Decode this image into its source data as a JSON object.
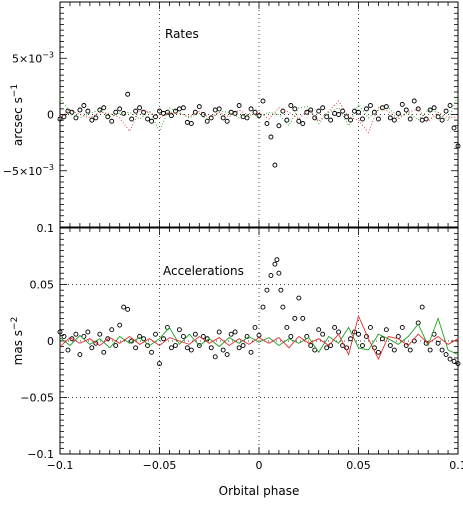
{
  "chart_data": [
    {
      "type": "scatter",
      "panel": "top",
      "annotation": "Rates",
      "ylabel_main": "arcsec s",
      "ylabel_exp": "−1",
      "xlim": [
        -0.1,
        0.1
      ],
      "ylim": [
        -0.01,
        0.01
      ],
      "grid": "dotted vertical lines at -0.05, 0, 0.05; dotted horizontal line at 0",
      "yticks": [
        {
          "value": 0.005,
          "mant": "5×10",
          "exp": "−3"
        },
        {
          "value": 0,
          "mant": "0",
          "exp": ""
        },
        {
          "value": -0.005,
          "mant": "−5×10",
          "exp": "−3"
        }
      ],
      "series": [
        {
          "style": "circles",
          "color": "#000000",
          "x": [
            -0.1,
            -0.098,
            -0.096,
            -0.094,
            -0.092,
            -0.09,
            -0.088,
            -0.086,
            -0.084,
            -0.082,
            -0.08,
            -0.078,
            -0.076,
            -0.074,
            -0.072,
            -0.07,
            -0.068,
            -0.066,
            -0.064,
            -0.062,
            -0.06,
            -0.058,
            -0.056,
            -0.054,
            -0.052,
            -0.05,
            -0.048,
            -0.046,
            -0.044,
            -0.042,
            -0.04,
            -0.038,
            -0.036,
            -0.034,
            -0.032,
            -0.03,
            -0.028,
            -0.026,
            -0.024,
            -0.022,
            -0.02,
            -0.018,
            -0.016,
            -0.014,
            -0.012,
            -0.01,
            -0.008,
            -0.006,
            -0.004,
            -0.002,
            0.0,
            0.002,
            0.004,
            0.006,
            0.008,
            0.01,
            0.012,
            0.014,
            0.016,
            0.018,
            0.02,
            0.022,
            0.024,
            0.026,
            0.028,
            0.03,
            0.032,
            0.034,
            0.036,
            0.038,
            0.04,
            0.042,
            0.044,
            0.046,
            0.048,
            0.05,
            0.052,
            0.054,
            0.056,
            0.058,
            0.06,
            0.062,
            0.064,
            0.066,
            0.068,
            0.07,
            0.072,
            0.074,
            0.076,
            0.078,
            0.08,
            0.082,
            0.084,
            0.086,
            0.088,
            0.09,
            0.092,
            0.094,
            0.096,
            0.098,
            0.1
          ],
          "y": [
            -0.0004,
            -0.0002,
            0.0003,
            0.0002,
            -0.0003,
            0.0004,
            0.0008,
            0.0003,
            -0.0005,
            -0.0003,
            0.0004,
            0.0006,
            -0.0002,
            -0.0006,
            0.0002,
            0.0005,
            0.0001,
            0.0018,
            -0.0004,
            0.0003,
            0.0006,
            0.0002,
            -0.0004,
            -0.0006,
            -0.0002,
            0.0003,
            0.0001,
            0.0002,
            -0.0001,
            0.0003,
            0.0005,
            0.0006,
            -0.0007,
            -0.0008,
            0.0002,
            0.0007,
            0.0,
            -0.0006,
            -0.0003,
            0.0004,
            0.0005,
            -0.0003,
            -0.0006,
            0.0002,
            0.0001,
            0.0008,
            -0.0002,
            -0.0003,
            0.0005,
            0.0002,
            -0.0001,
            0.0012,
            -0.0008,
            -0.002,
            -0.0045,
            -0.001,
            0.0003,
            -0.0005,
            0.0008,
            0.0005,
            -0.0006,
            -0.0008,
            0.0002,
            0.0004,
            -0.0003,
            0.0003,
            0.0006,
            -0.0002,
            -0.0005,
            0.0001,
            0.0,
            0.0003,
            -0.0002,
            -0.0005,
            0.0003,
            0.0002,
            -0.0004,
            0.0005,
            0.0008,
            0.0002,
            -0.0004,
            0.0006,
            0.0007,
            -0.0003,
            -0.0005,
            0.0001,
            0.0009,
            0.0004,
            -0.0004,
            0.0012,
            0.0005,
            -0.0005,
            -0.0004,
            0.0004,
            0.0006,
            -0.0002,
            -0.0005,
            0.0003,
            0.0008,
            -0.0012,
            -0.0028
          ]
        },
        {
          "style": "dotted line",
          "color": "#22a022",
          "x": [
            -0.1,
            -0.095,
            -0.09,
            -0.085,
            -0.08,
            -0.075,
            -0.07,
            -0.065,
            -0.06,
            -0.055,
            -0.05,
            -0.045,
            -0.04,
            -0.035,
            -0.03,
            -0.025,
            -0.02,
            -0.015,
            -0.01,
            -0.005,
            0.0,
            0.005,
            0.01,
            0.015,
            0.02,
            0.025,
            0.03,
            0.035,
            0.04,
            0.045,
            0.05,
            0.055,
            0.06,
            0.065,
            0.07,
            0.075,
            0.08,
            0.085,
            0.09,
            0.095,
            0.1
          ],
          "y": [
            0.0015,
            0.0002,
            -0.0003,
            0.0001,
            0.0004,
            -0.0002,
            0.0001,
            0.0002,
            -0.0004,
            0.0003,
            -0.0015,
            0.0006,
            0.0002,
            -0.0003,
            0.0001,
            -0.0006,
            0.0003,
            0.0002,
            -0.0003,
            0.0001,
            -0.0002,
            0.0002,
            0.0,
            -0.001,
            0.0006,
            0.0007,
            -0.0008,
            0.0002,
            0.0006,
            -0.001,
            0.0009,
            -0.0003,
            0.0004,
            0.0006,
            -0.0002,
            0.0002,
            -0.0005,
            0.0004,
            0.0002,
            -0.0006,
            0.0018
          ]
        },
        {
          "style": "dotted line",
          "color": "#e03030",
          "x": [
            -0.1,
            -0.095,
            -0.09,
            -0.085,
            -0.08,
            -0.075,
            -0.07,
            -0.065,
            -0.06,
            -0.055,
            -0.05,
            -0.045,
            -0.04,
            -0.035,
            -0.03,
            -0.025,
            -0.02,
            -0.015,
            -0.01,
            -0.005,
            0.0,
            0.005,
            0.01,
            0.015,
            0.02,
            0.025,
            0.03,
            0.035,
            0.04,
            0.045,
            0.05,
            0.055,
            0.06,
            0.065,
            0.07,
            0.075,
            0.08,
            0.085,
            0.09,
            0.095,
            0.1
          ],
          "y": [
            -0.0003,
            0.0004,
            0.0,
            -0.0003,
            0.0002,
            0.0001,
            -0.0003,
            -0.0015,
            0.0004,
            0.0002,
            -0.0003,
            0.0002,
            0.0001,
            -0.0002,
            0.0003,
            -0.0003,
            0.0002,
            -0.0002,
            0.0004,
            -0.0001,
            0.0002,
            -0.0004,
            0.0006,
            0.0002,
            -0.0004,
            0.0005,
            -0.0006,
            0.0003,
            0.0012,
            -0.0002,
            -0.0005,
            -0.0016,
            0.0006,
            0.0003,
            -0.0004,
            0.0002,
            0.0005,
            -0.0006,
            0.0002,
            -0.0003,
            -0.0002
          ]
        }
      ]
    },
    {
      "type": "scatter",
      "panel": "bottom",
      "annotation": "Accelerations",
      "ylabel_main": "mas s",
      "ylabel_exp": "−2",
      "xlabel": "Orbital phase",
      "xlim": [
        -0.1,
        0.1
      ],
      "ylim": [
        -0.1,
        0.1
      ],
      "grid": "dotted vertical lines at -0.05, 0, 0.05; dotted horizontal lines at -0.05, 0, 0.05",
      "xticks": [
        {
          "value": -0.1,
          "label": "−0.1"
        },
        {
          "value": -0.05,
          "label": "−0.05"
        },
        {
          "value": 0,
          "label": "0"
        },
        {
          "value": 0.05,
          "label": "0.05"
        },
        {
          "value": 0.1,
          "label": "0.1"
        }
      ],
      "yticks": [
        {
          "value": 0.1,
          "label": "0.1"
        },
        {
          "value": 0.05,
          "label": "0.05"
        },
        {
          "value": 0,
          "label": "0"
        },
        {
          "value": -0.05,
          "label": "−0.05"
        },
        {
          "value": -0.1,
          "label": "−0.1"
        }
      ],
      "series": [
        {
          "style": "circles",
          "color": "#000000",
          "x": [
            -0.1,
            -0.098,
            -0.096,
            -0.094,
            -0.092,
            -0.09,
            -0.088,
            -0.086,
            -0.084,
            -0.082,
            -0.08,
            -0.078,
            -0.076,
            -0.074,
            -0.072,
            -0.07,
            -0.068,
            -0.066,
            -0.064,
            -0.062,
            -0.06,
            -0.058,
            -0.056,
            -0.054,
            -0.052,
            -0.05,
            -0.048,
            -0.046,
            -0.044,
            -0.042,
            -0.04,
            -0.038,
            -0.036,
            -0.034,
            -0.032,
            -0.03,
            -0.028,
            -0.026,
            -0.024,
            -0.022,
            -0.02,
            -0.018,
            -0.016,
            -0.014,
            -0.012,
            -0.01,
            -0.008,
            -0.006,
            -0.004,
            -0.002,
            0.0,
            0.002,
            0.004,
            0.006,
            0.008,
            0.009,
            0.01,
            0.011,
            0.012,
            0.014,
            0.016,
            0.018,
            0.02,
            0.022,
            0.024,
            0.026,
            0.028,
            0.03,
            0.032,
            0.034,
            0.036,
            0.038,
            0.04,
            0.042,
            0.044,
            0.046,
            0.048,
            0.05,
            0.052,
            0.054,
            0.056,
            0.058,
            0.06,
            0.062,
            0.064,
            0.066,
            0.068,
            0.07,
            0.072,
            0.074,
            0.076,
            0.078,
            0.08,
            0.082,
            0.084,
            0.086,
            0.088,
            0.09,
            0.092,
            0.094,
            0.096,
            0.098,
            0.1
          ],
          "y": [
            0.008,
            0.004,
            -0.008,
            0.002,
            0.006,
            -0.012,
            0.004,
            0.008,
            -0.006,
            -0.002,
            0.006,
            -0.01,
            0.002,
            0.01,
            -0.004,
            0.014,
            0.03,
            0.028,
            0.0,
            -0.006,
            0.004,
            0.002,
            -0.004,
            -0.01,
            0.006,
            -0.02,
            0.002,
            0.012,
            -0.006,
            -0.004,
            0.01,
            0.004,
            -0.006,
            -0.008,
            0.006,
            -0.004,
            0.004,
            0.002,
            -0.006,
            -0.014,
            0.008,
            -0.008,
            -0.012,
            0.006,
            0.008,
            -0.006,
            -0.004,
            0.004,
            -0.01,
            0.012,
            0.005,
            0.03,
            0.045,
            0.058,
            0.068,
            0.072,
            0.06,
            0.045,
            0.03,
            0.012,
            0.004,
            0.02,
            0.038,
            0.02,
            0.004,
            -0.004,
            -0.008,
            0.01,
            0.006,
            -0.006,
            -0.004,
            0.012,
            0.008,
            -0.004,
            -0.006,
            0.002,
            0.008,
            0.006,
            -0.004,
            0.004,
            0.012,
            -0.006,
            -0.01,
            0.002,
            0.01,
            -0.004,
            -0.008,
            0.004,
            0.012,
            -0.004,
            -0.008,
            0.0,
            0.016,
            0.03,
            -0.002,
            -0.008,
            0.006,
            -0.002,
            -0.008,
            -0.012,
            -0.016,
            -0.018,
            -0.02
          ]
        },
        {
          "style": "line",
          "color": "#22a022",
          "x": [
            -0.1,
            -0.095,
            -0.09,
            -0.085,
            -0.08,
            -0.075,
            -0.07,
            -0.065,
            -0.06,
            -0.055,
            -0.05,
            -0.045,
            -0.04,
            -0.035,
            -0.03,
            -0.025,
            -0.02,
            -0.015,
            -0.01,
            -0.005,
            0.0,
            0.005,
            0.01,
            0.015,
            0.02,
            0.025,
            0.03,
            0.035,
            0.04,
            0.045,
            0.05,
            0.055,
            0.06,
            0.065,
            0.07,
            0.075,
            0.08,
            0.085,
            0.09,
            0.095,
            0.1
          ],
          "y": [
            0.003,
            -0.004,
            0.005,
            -0.003,
            0.002,
            -0.006,
            0.004,
            -0.002,
            0.003,
            -0.004,
            0.002,
            0.012,
            -0.003,
            0.006,
            -0.004,
            0.002,
            -0.005,
            0.003,
            -0.002,
            0.004,
            -0.001,
            0.003,
            -0.004,
            0.002,
            -0.002,
            0.003,
            -0.01,
            0.004,
            -0.002,
            0.012,
            -0.006,
            -0.008,
            0.006,
            0.002,
            -0.003,
            0.004,
            0.015,
            -0.004,
            0.02,
            -0.008,
            -0.012
          ]
        },
        {
          "style": "line",
          "color": "#e03030",
          "x": [
            -0.1,
            -0.095,
            -0.09,
            -0.085,
            -0.08,
            -0.075,
            -0.07,
            -0.065,
            -0.06,
            -0.055,
            -0.05,
            -0.045,
            -0.04,
            -0.035,
            -0.03,
            -0.025,
            -0.02,
            -0.015,
            -0.01,
            -0.005,
            0.0,
            0.005,
            0.01,
            0.015,
            0.02,
            0.025,
            0.03,
            0.035,
            0.04,
            0.045,
            0.05,
            0.055,
            0.06,
            0.065,
            0.07,
            0.075,
            0.08,
            0.085,
            0.09,
            0.095,
            0.1
          ],
          "y": [
            -0.005,
            0.003,
            -0.002,
            0.002,
            -0.004,
            0.003,
            -0.002,
            0.004,
            -0.003,
            0.002,
            -0.004,
            0.003,
            0.0,
            -0.003,
            0.004,
            -0.002,
            0.003,
            -0.004,
            0.002,
            -0.003,
            0.003,
            -0.002,
            0.003,
            -0.006,
            0.004,
            -0.002,
            0.002,
            -0.004,
            0.006,
            -0.012,
            0.022,
            0.002,
            -0.016,
            0.004,
            0.002,
            -0.004,
            0.006,
            -0.002,
            0.004,
            -0.003,
            0.002
          ]
        }
      ]
    }
  ]
}
